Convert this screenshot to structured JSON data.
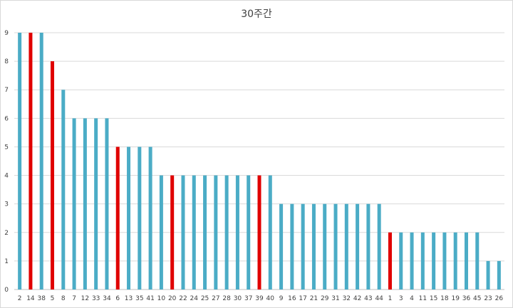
{
  "chart_data": {
    "type": "bar",
    "title": "30주간",
    "xlabel": "",
    "ylabel": "",
    "ylim": [
      0,
      9
    ],
    "yticks": [
      0,
      1,
      2,
      3,
      4,
      5,
      6,
      7,
      8,
      9
    ],
    "grid": true,
    "legend": "none",
    "categories": [
      "2",
      "14",
      "38",
      "5",
      "8",
      "7",
      "12",
      "33",
      "34",
      "6",
      "13",
      "35",
      "41",
      "10",
      "20",
      "22",
      "24",
      "25",
      "27",
      "28",
      "30",
      "37",
      "39",
      "40",
      "9",
      "16",
      "17",
      "21",
      "29",
      "31",
      "32",
      "42",
      "43",
      "44",
      "1",
      "3",
      "4",
      "11",
      "15",
      "18",
      "19",
      "36",
      "45",
      "23",
      "26"
    ],
    "values": [
      9,
      9,
      9,
      8,
      7,
      6,
      6,
      6,
      6,
      5,
      5,
      5,
      5,
      4,
      4,
      4,
      4,
      4,
      4,
      4,
      4,
      4,
      4,
      4,
      3,
      3,
      3,
      3,
      3,
      3,
      3,
      3,
      3,
      3,
      2,
      2,
      2,
      2,
      2,
      2,
      2,
      2,
      2,
      1,
      1
    ],
    "highlighted_categories": [
      "14",
      "5",
      "6",
      "20",
      "39",
      "1"
    ],
    "colors": {
      "normal": "#4bacc6",
      "highlight": "#e00000",
      "grid": "#d9d9d9",
      "axis": "#bfbfbf"
    }
  }
}
